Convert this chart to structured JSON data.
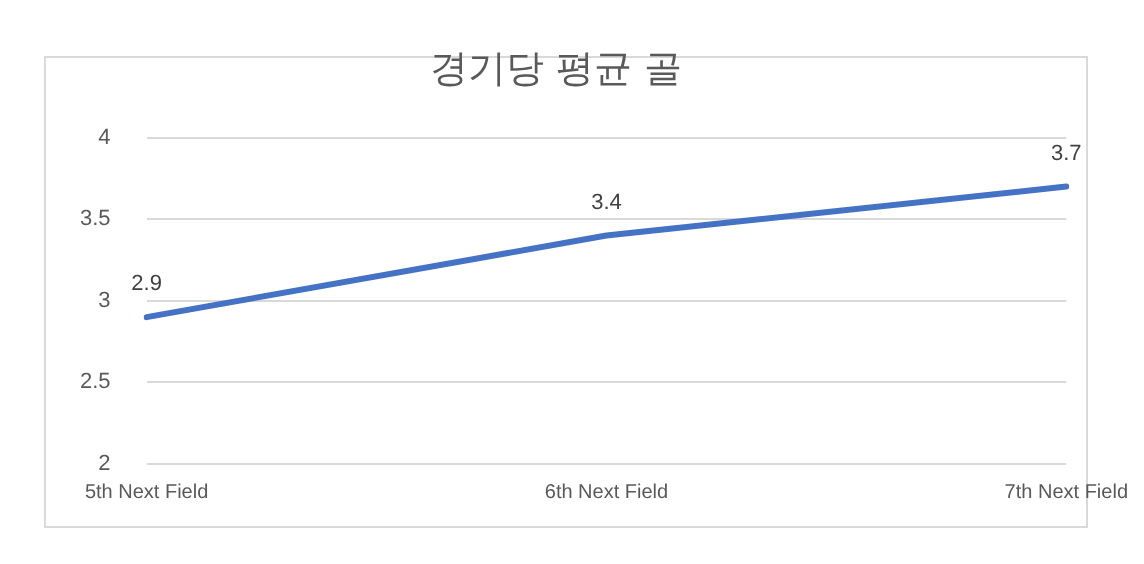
{
  "chart_data": {
    "type": "line",
    "title": "경기당 평균 골",
    "categories": [
      "5th Next Field",
      "6th Next Field",
      "7th Next Field"
    ],
    "series": [
      {
        "color": "#4472c4",
        "values": [
          2.9,
          3.4,
          3.7
        ]
      }
    ],
    "ylim": [
      2,
      4
    ],
    "yticks": [
      2,
      2.5,
      3,
      3.5,
      4
    ],
    "grid": "y",
    "data_labels": true,
    "marker": "none",
    "line_style": "solid",
    "legend": false
  }
}
